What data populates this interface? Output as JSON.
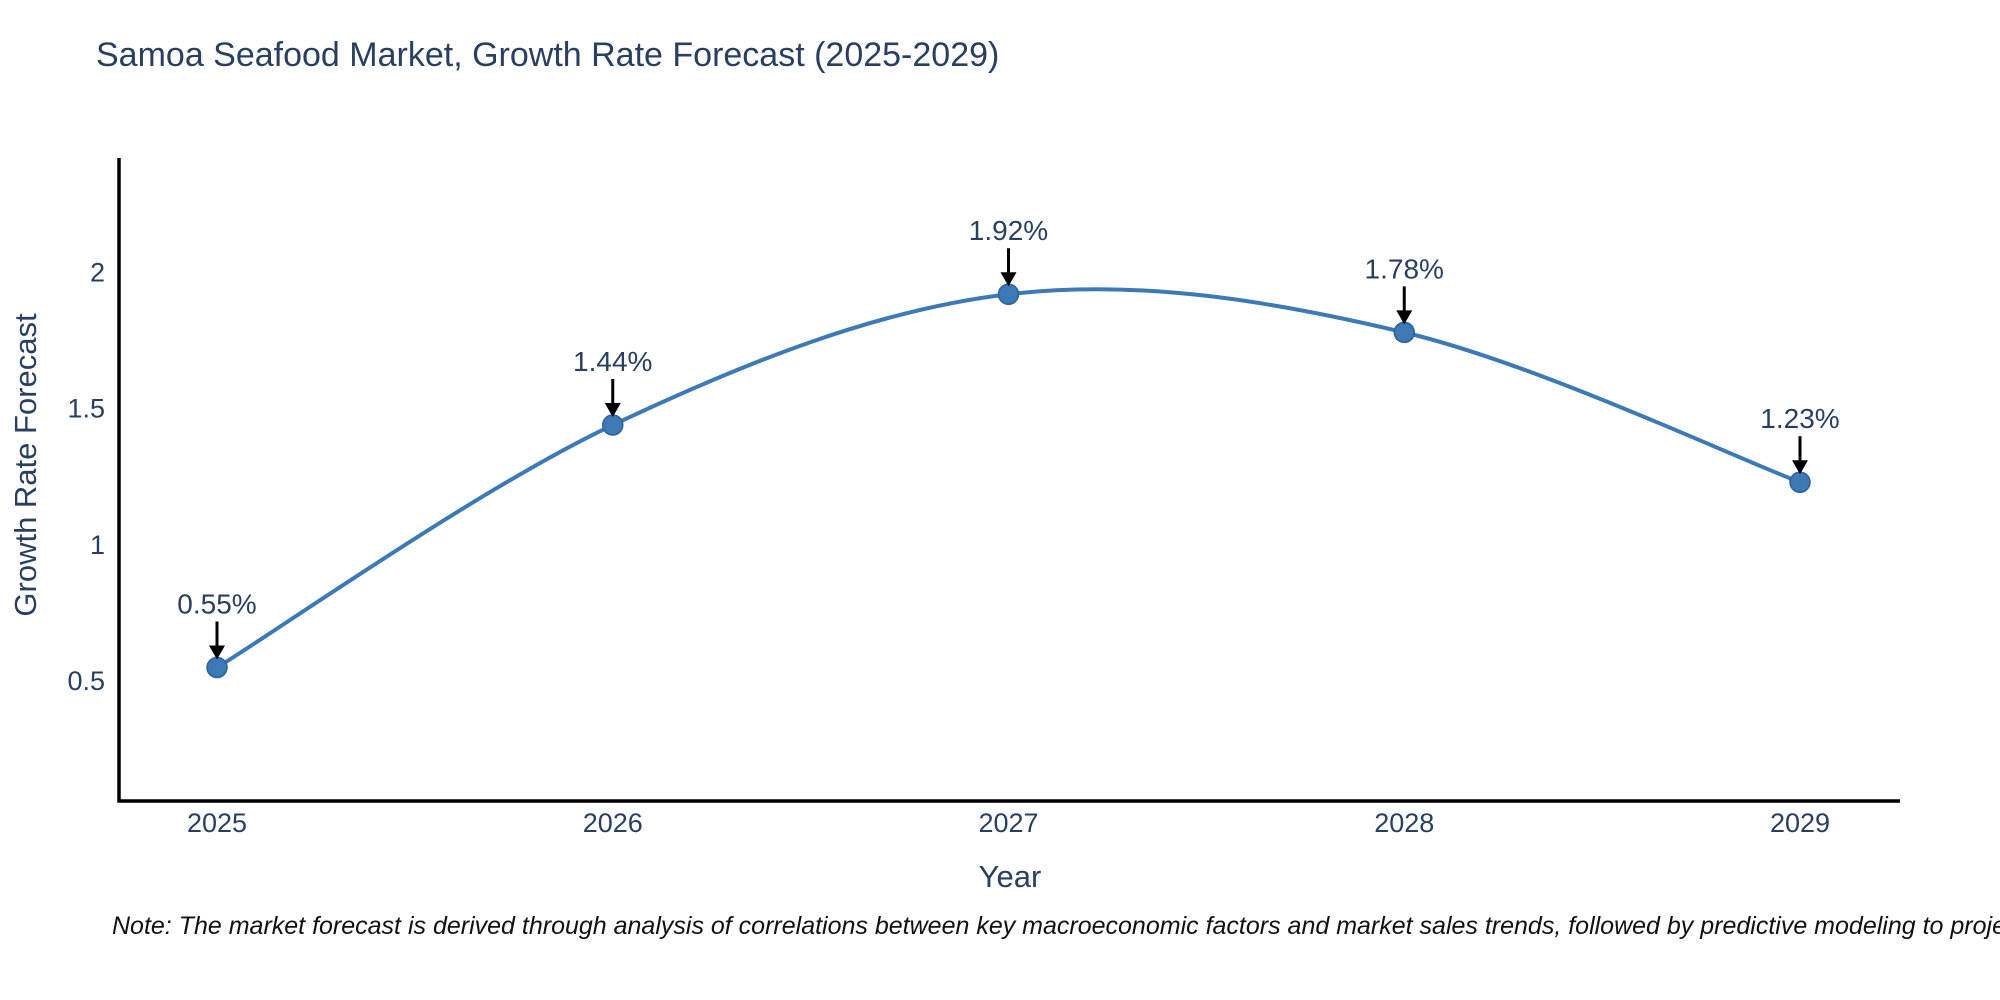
{
  "title": "Samoa Seafood Market, Growth Rate Forecast (2025-2029)",
  "note": "Note: The market forecast is derived through analysis of correlations between key macroeconomic factors and market sales trends, followed by predictive modeling to project future sales",
  "chart_data": {
    "type": "line",
    "title": "Samoa Seafood Market, Growth Rate Forecast (2025-2029)",
    "xlabel": "Year",
    "ylabel": "Growth Rate Forecast",
    "x": [
      2025,
      2026,
      2027,
      2028,
      2029
    ],
    "y": [
      0.55,
      1.44,
      1.92,
      1.78,
      1.23
    ],
    "point_labels": [
      "0.55%",
      "1.44%",
      "1.92%",
      "1.78%",
      "1.23%"
    ],
    "x_tick_labels": [
      "2025",
      "2026",
      "2027",
      "2028",
      "2029"
    ],
    "y_tick_labels": [
      "0.5",
      "1",
      "1.5",
      "2"
    ],
    "y_tick_values": [
      0.5,
      1,
      1.5,
      2
    ],
    "ylim": [
      0.06,
      2.42
    ],
    "line_shape": "spline",
    "grid": false,
    "legend": "none",
    "markers": true,
    "annotation_arrows": true,
    "colors": {
      "line": "#3c79b5",
      "marker_fill": "#3c79b5",
      "marker_edge": "#2d629a",
      "axis_line": "#000000",
      "tick_text": "#2a3f5f",
      "title_text": "#2a3f5f",
      "annotation_text": "#2a3f5f",
      "arrow": "#000000",
      "note_text": "#111111",
      "background": "#ffffff"
    }
  }
}
